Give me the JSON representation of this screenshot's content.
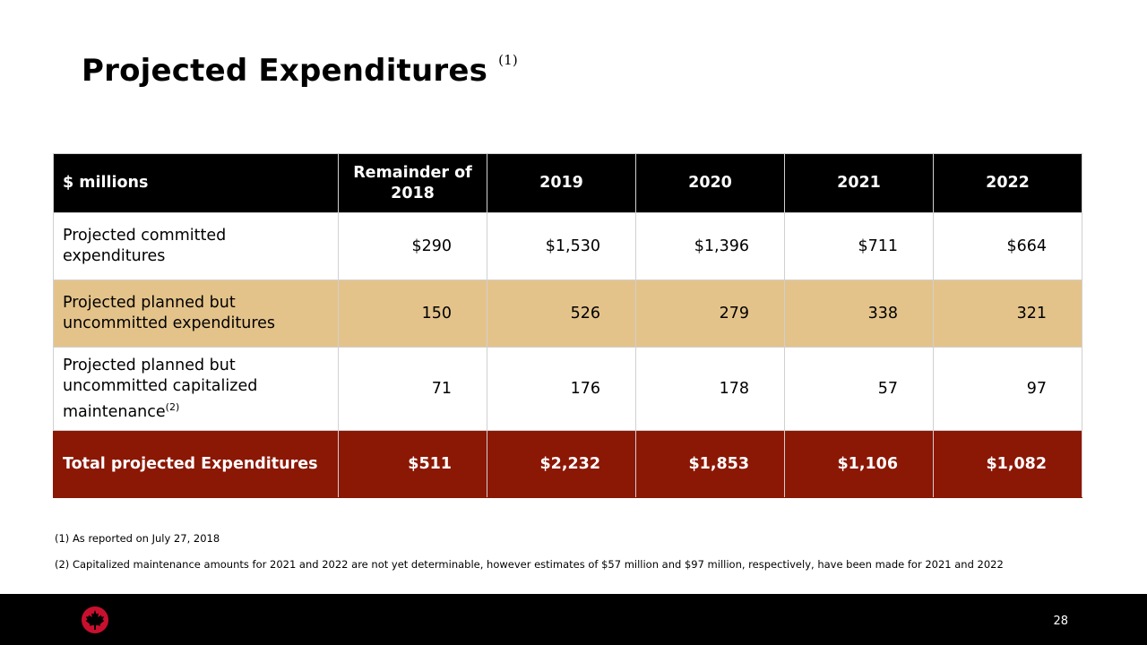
{
  "title": "Projected Expenditures",
  "title_footnote_marker": "(1)",
  "table": {
    "headers": [
      "$ millions",
      "Remainder of 2018",
      "2019",
      "2020",
      "2021",
      "2022"
    ],
    "rows": [
      {
        "label": "Projected committed expenditures",
        "label_sup": "",
        "values": [
          "$290",
          "$1,530",
          "$1,396",
          "$711",
          "$664"
        ]
      },
      {
        "label": "Projected planned but uncommitted expenditures",
        "label_sup": "",
        "values": [
          "150",
          "526",
          "279",
          "338",
          "321"
        ]
      },
      {
        "label": "Projected planned but uncommitted capitalized maintenance",
        "label_sup": "(2)",
        "values": [
          "71",
          "176",
          "178",
          "57",
          "97"
        ]
      },
      {
        "label": "Total projected Expenditures",
        "label_sup": "",
        "values": [
          "$511",
          "$2,232",
          "$1,853",
          "$1,106",
          "$1,082"
        ]
      }
    ]
  },
  "footnotes": [
    "(1) As reported on July 27, 2018",
    "(2) Capitalized maintenance amounts for 2021 and 2022 are not yet determinable, however estimates of $57 million and $97 million, respectively, have been made for 2021 and 2022"
  ],
  "page_number": "28",
  "colors": {
    "header_bg": "#000000",
    "highlight_row": "#e4c38a",
    "total_row": "#8b1705",
    "logo": "#c8102e"
  },
  "logo_icon": "maple-leaf-roundel-icon"
}
